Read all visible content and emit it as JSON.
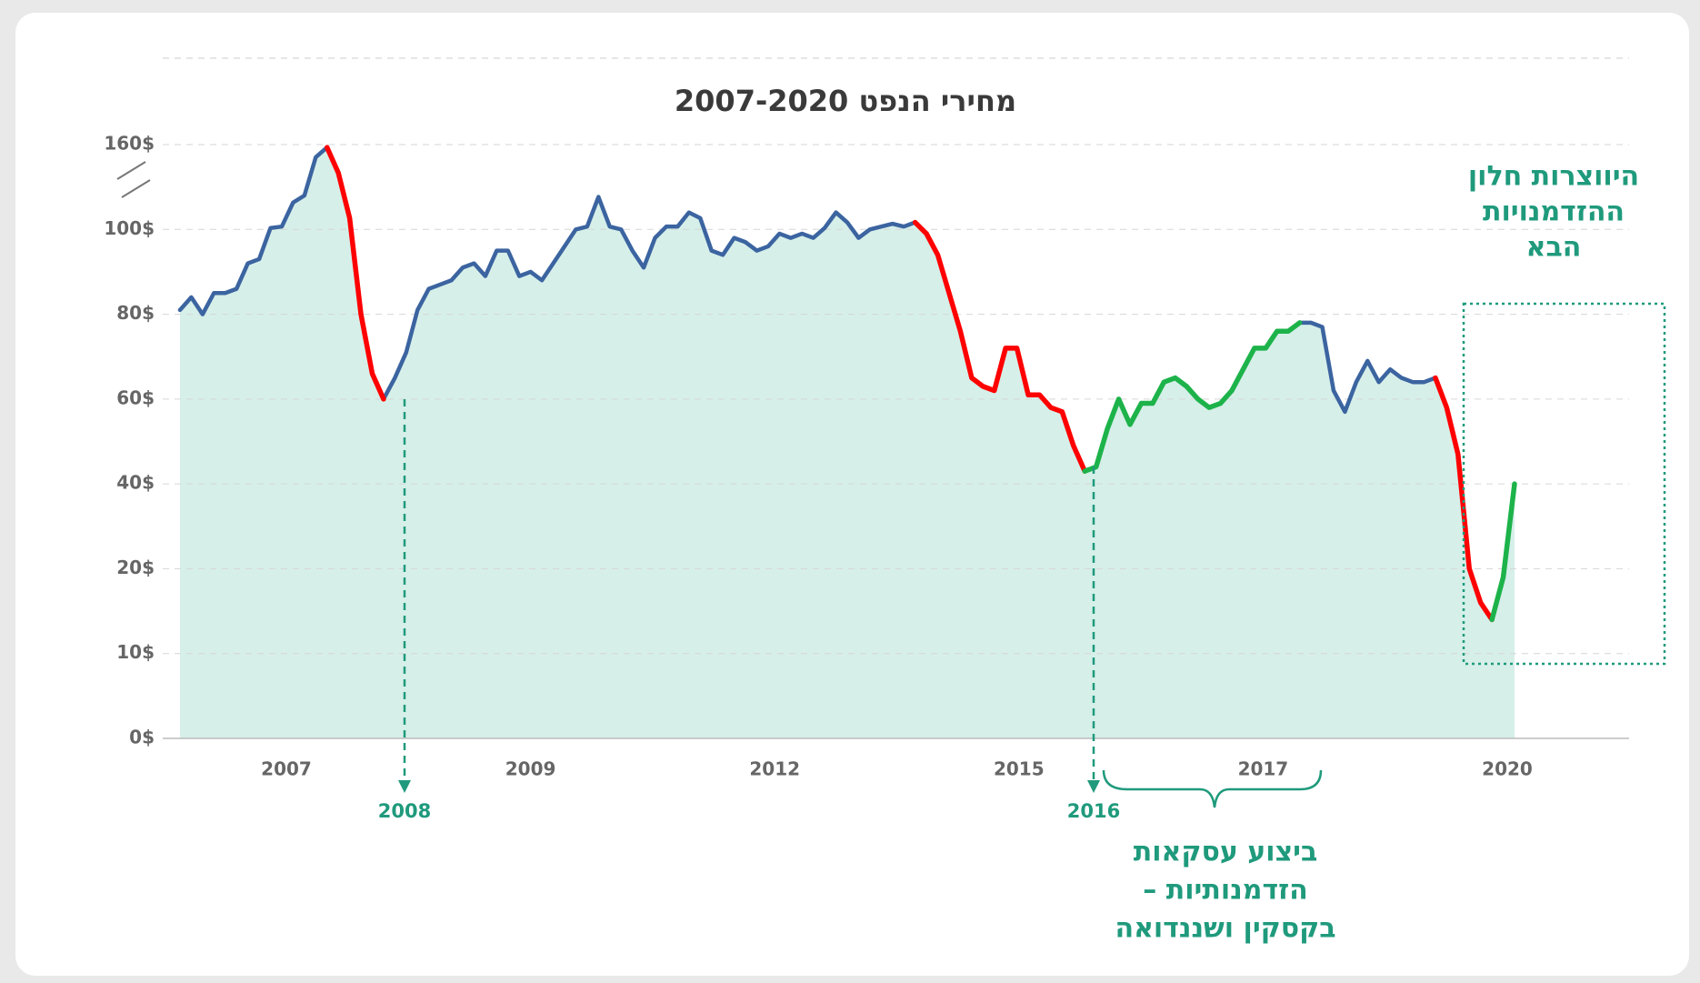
{
  "chart_data": {
    "type": "line",
    "title": "מחירי הנפט 2007-2020",
    "x_labels": [
      "2007",
      "2009",
      "2012",
      "2015",
      "2017",
      "2020"
    ],
    "ylim": [
      0,
      160
    ],
    "yticks": [
      {
        "value": 0,
        "label": "0$"
      },
      {
        "value": 10,
        "label": "10$"
      },
      {
        "value": 20,
        "label": "20$"
      },
      {
        "value": 40,
        "label": "40$"
      },
      {
        "value": 60,
        "label": "60$"
      },
      {
        "value": 80,
        "label": "80$"
      },
      {
        "value": 100,
        "label": "100$"
      },
      {
        "value": 160,
        "label": "160$"
      }
    ],
    "grid": true,
    "area_color": "#d6efe9",
    "series": [
      {
        "color": "#3b64a0",
        "values": [
          81,
          84,
          80,
          85,
          85,
          86,
          92,
          93,
          101,
          102,
          119,
          124,
          151,
          158,
          null,
          null,
          null,
          null,
          60,
          65,
          71,
          81,
          86,
          87,
          88,
          91,
          92,
          89,
          95,
          95,
          89,
          90,
          88,
          92,
          96,
          100,
          102,
          123,
          102,
          100,
          95,
          91,
          98,
          102,
          102,
          112,
          108,
          95,
          94,
          98,
          97,
          95,
          96,
          99,
          98,
          99,
          98,
          101,
          112,
          105,
          98,
          100,
          102,
          104,
          102,
          105,
          null,
          null,
          null,
          null,
          null,
          null,
          null,
          null,
          null,
          null,
          null,
          null,
          null,
          null,
          null,
          null,
          null,
          null,
          null,
          null,
          null,
          null,
          null,
          null,
          null,
          null,
          null,
          null,
          null,
          null,
          null,
          null,
          null,
          78,
          78,
          77,
          62,
          57,
          64,
          69,
          64,
          67,
          65,
          64,
          64,
          65,
          null,
          null,
          null,
          null,
          null,
          null,
          null
        ]
      },
      {
        "color": "#ff0000",
        "values": [
          null,
          null,
          null,
          null,
          null,
          null,
          null,
          null,
          null,
          null,
          null,
          null,
          null,
          158,
          140,
          108,
          80,
          66,
          60,
          null,
          null,
          null,
          null,
          null,
          null,
          null,
          null,
          null,
          null,
          null,
          null,
          null,
          null,
          null,
          null,
          null,
          null,
          null,
          null,
          null,
          null,
          null,
          null,
          null,
          null,
          null,
          null,
          null,
          null,
          null,
          null,
          null,
          null,
          null,
          null,
          null,
          null,
          null,
          null,
          null,
          null,
          null,
          null,
          null,
          null,
          105,
          99,
          94,
          85,
          76,
          65,
          63,
          62,
          72,
          72,
          61,
          61,
          58,
          57,
          49,
          43,
          null,
          null,
          null,
          null,
          null,
          null,
          null,
          null,
          null,
          null,
          null,
          null,
          null,
          null,
          null,
          null,
          null,
          null,
          null,
          null,
          null,
          null,
          null,
          null,
          null,
          null,
          null,
          null,
          null,
          null,
          65,
          58,
          47,
          20,
          16,
          14,
          null,
          null
        ]
      },
      {
        "color": "#1db34a",
        "values": [
          null,
          null,
          null,
          null,
          null,
          null,
          null,
          null,
          null,
          null,
          null,
          null,
          null,
          null,
          null,
          null,
          null,
          null,
          null,
          null,
          null,
          null,
          null,
          null,
          null,
          null,
          null,
          null,
          null,
          null,
          null,
          null,
          null,
          null,
          null,
          null,
          null,
          null,
          null,
          null,
          null,
          null,
          null,
          null,
          null,
          null,
          null,
          null,
          null,
          null,
          null,
          null,
          null,
          null,
          null,
          null,
          null,
          null,
          null,
          null,
          null,
          null,
          null,
          null,
          null,
          null,
          null,
          null,
          null,
          null,
          null,
          null,
          null,
          null,
          null,
          null,
          null,
          null,
          null,
          null,
          43,
          44,
          53,
          60,
          54,
          59,
          59,
          64,
          65,
          63,
          60,
          58,
          59,
          62,
          67,
          72,
          72,
          76,
          76,
          78,
          null,
          null,
          null,
          null,
          null,
          null,
          null,
          null,
          null,
          null,
          null,
          null,
          null,
          null,
          null,
          null,
          14,
          19,
          40
        ]
      }
    ],
    "annotations": [
      {
        "text": "2008"
      },
      {
        "text": "2016"
      },
      {
        "lines": [
          "ביצוע עסקאות",
          "הזדמנותיות –",
          "בקסקין ושננדואה"
        ]
      },
      {
        "lines": [
          "היווצרות חלון",
          "ההזדמנויות",
          "הבא"
        ]
      }
    ]
  }
}
